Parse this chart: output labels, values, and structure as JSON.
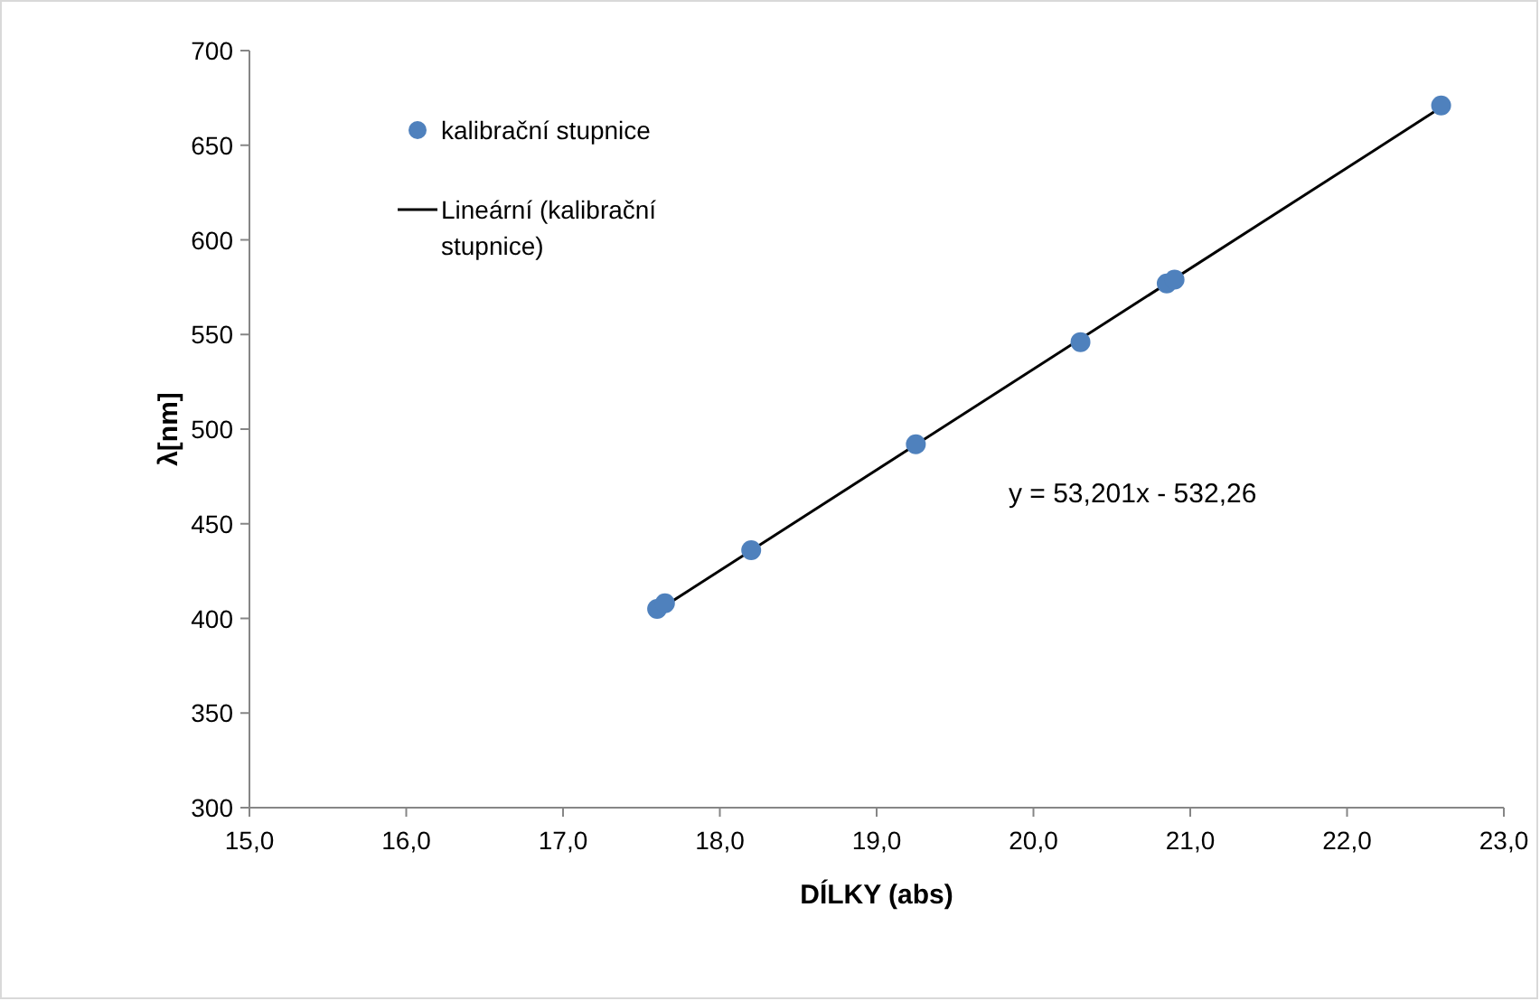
{
  "chart_data": {
    "type": "scatter",
    "xlabel": "DÍLKY (abs)",
    "ylabel": "λ[nm]",
    "xlim": [
      15,
      23
    ],
    "ylim": [
      300,
      700
    ],
    "xticks": [
      {
        "value": 15,
        "label": "15,0"
      },
      {
        "value": 16,
        "label": "16,0"
      },
      {
        "value": 17,
        "label": "17,0"
      },
      {
        "value": 18,
        "label": "18,0"
      },
      {
        "value": 19,
        "label": "19,0"
      },
      {
        "value": 20,
        "label": "20,0"
      },
      {
        "value": 21,
        "label": "21,0"
      },
      {
        "value": 22,
        "label": "22,0"
      },
      {
        "value": 23,
        "label": "23,0"
      }
    ],
    "yticks": [
      300,
      350,
      400,
      450,
      500,
      550,
      600,
      650,
      700
    ],
    "series": [
      {
        "name": "kalibrační stupnice",
        "color": "#4f81bd",
        "marker": "circle",
        "x": [
          17.6,
          17.65,
          18.2,
          19.25,
          20.3,
          20.85,
          20.9,
          22.6
        ],
        "values": [
          405,
          408,
          436,
          492,
          546,
          577,
          579,
          671
        ]
      },
      {
        "name": "Lineární (kalibrační stupnice)",
        "type": "line",
        "color": "#000000",
        "marker": "none",
        "line_style": "solid",
        "x": [
          17.6,
          22.6
        ],
        "values": [
          404,
          670
        ]
      }
    ],
    "annotations": [
      "y = 53,201x - 532,26"
    ],
    "grid": false,
    "legend": "top left"
  }
}
